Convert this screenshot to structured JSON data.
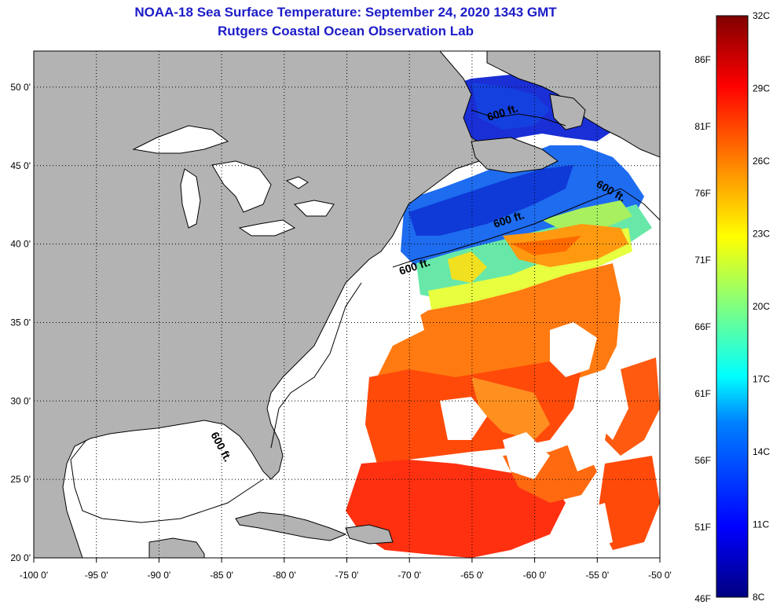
{
  "title": "NOAA-18 Sea Surface Temperature:  September 24, 2020 1343 GMT",
  "subtitle": "Rutgers Coastal Ocean Observation Lab",
  "axes": {
    "lon_min": -100,
    "lon_max": -50,
    "lat_min": 20,
    "lat_max": 52.3,
    "lon_ticks": [
      "-100 0'",
      "-95 0'",
      "-90 0'",
      "-85 0'",
      "-80 0'",
      "-75 0'",
      "-70 0'",
      "-65 0'",
      "-60 0'",
      "-55 0'",
      "-50 0'"
    ],
    "lat_ticks": [
      "50 0'",
      "45 0'",
      "40 0'",
      "35 0'",
      "30 0'",
      "25 0'",
      "20 0'"
    ],
    "grid": "dotted"
  },
  "contour_label": "600 ft.",
  "colorbar": {
    "fahrenheit": [
      "86F",
      "81F",
      "76F",
      "71F",
      "66F",
      "61F",
      "56F",
      "51F",
      "46F"
    ],
    "celsius": [
      "32C",
      "29C",
      "26C",
      "23C",
      "20C",
      "17C",
      "14C",
      "11C",
      "8C"
    ],
    "min_c": 8,
    "max_c": 32
  },
  "colors": {
    "land": "#b3b3b3",
    "cloud_or_nodata": "#ffffff",
    "title": "#1c1cc8"
  }
}
